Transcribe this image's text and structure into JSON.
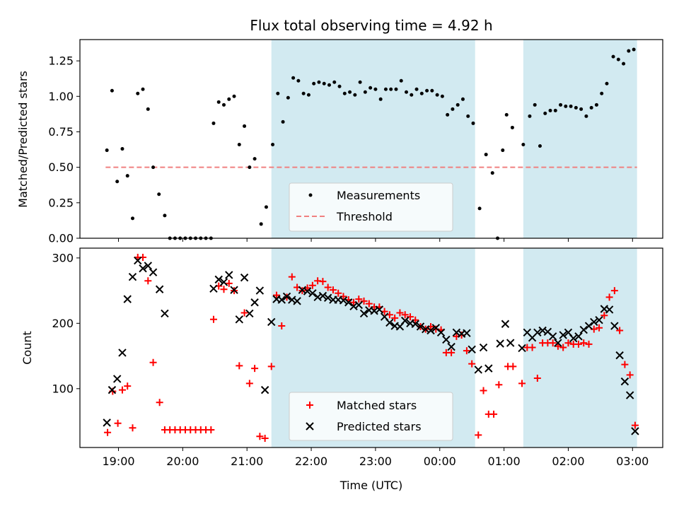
{
  "chart_data": {
    "type": "scatter",
    "title": "Flux total observing time = 4.92 h",
    "xlabel": "Time (UTC)",
    "x_ticks": [
      {
        "t": 19.0,
        "label": "19:00"
      },
      {
        "t": 20.0,
        "label": "20:00"
      },
      {
        "t": 21.0,
        "label": "21:00"
      },
      {
        "t": 22.0,
        "label": "22:00"
      },
      {
        "t": 23.0,
        "label": "23:00"
      },
      {
        "t": 24.0,
        "label": "00:00"
      },
      {
        "t": 25.0,
        "label": "01:00"
      },
      {
        "t": 26.0,
        "label": "02:00"
      },
      {
        "t": 27.0,
        "label": "03:00"
      }
    ],
    "xlim": [
      18.4,
      27.47
    ],
    "shaded_spans": [
      [
        21.38,
        24.55
      ],
      [
        25.3,
        27.07
      ]
    ],
    "colors": {
      "shade": "#add8e6",
      "matched": "#ff0000",
      "predicted": "#000000",
      "threshold": "#f08080",
      "measure": "#000000"
    },
    "top": {
      "ylabel": "Matched/Predicted stars",
      "ylim": [
        0,
        1.4
      ],
      "y_ticks": [
        0,
        0.25,
        0.5,
        0.75,
        1.0,
        1.25
      ],
      "y_tick_labels": [
        "0.00",
        "0.25",
        "0.50",
        "0.75",
        "1.00",
        "1.25"
      ],
      "threshold": 0.5,
      "threshold_x": [
        18.8,
        27.07
      ],
      "legend": [
        {
          "name": "Measurements"
        },
        {
          "name": "Threshold"
        }
      ],
      "measurements": [
        [
          18.82,
          0.62
        ],
        [
          18.9,
          1.04
        ],
        [
          18.98,
          0.4
        ],
        [
          19.06,
          0.63
        ],
        [
          19.14,
          0.44
        ],
        [
          19.22,
          0.14
        ],
        [
          19.3,
          1.02
        ],
        [
          19.38,
          1.05
        ],
        [
          19.46,
          0.91
        ],
        [
          19.54,
          0.5
        ],
        [
          19.63,
          0.31
        ],
        [
          19.72,
          0.16
        ],
        [
          19.8,
          0
        ],
        [
          19.88,
          0
        ],
        [
          19.96,
          0
        ],
        [
          20.04,
          0
        ],
        [
          20.12,
          0
        ],
        [
          20.2,
          0
        ],
        [
          20.28,
          0
        ],
        [
          20.36,
          0
        ],
        [
          20.44,
          0
        ],
        [
          20.48,
          0.81
        ],
        [
          20.56,
          0.96
        ],
        [
          20.64,
          0.94
        ],
        [
          20.72,
          0.98
        ],
        [
          20.8,
          1.0
        ],
        [
          20.88,
          0.66
        ],
        [
          20.96,
          0.79
        ],
        [
          21.04,
          0.5
        ],
        [
          21.12,
          0.56
        ],
        [
          21.22,
          0.1
        ],
        [
          21.3,
          0.22
        ],
        [
          21.4,
          0.66
        ],
        [
          21.48,
          1.02
        ],
        [
          21.56,
          0.82
        ],
        [
          21.64,
          0.99
        ],
        [
          21.72,
          1.13
        ],
        [
          21.8,
          1.11
        ],
        [
          21.88,
          1.02
        ],
        [
          21.96,
          1.01
        ],
        [
          22.04,
          1.09
        ],
        [
          22.12,
          1.1
        ],
        [
          22.2,
          1.09
        ],
        [
          22.28,
          1.08
        ],
        [
          22.36,
          1.1
        ],
        [
          22.44,
          1.07
        ],
        [
          22.52,
          1.02
        ],
        [
          22.6,
          1.03
        ],
        [
          22.68,
          1.01
        ],
        [
          22.76,
          1.1
        ],
        [
          22.84,
          1.03
        ],
        [
          22.92,
          1.06
        ],
        [
          23.0,
          1.05
        ],
        [
          23.08,
          0.98
        ],
        [
          23.16,
          1.05
        ],
        [
          23.24,
          1.05
        ],
        [
          23.32,
          1.05
        ],
        [
          23.4,
          1.11
        ],
        [
          23.48,
          1.03
        ],
        [
          23.56,
          1.01
        ],
        [
          23.64,
          1.05
        ],
        [
          23.72,
          1.02
        ],
        [
          23.8,
          1.04
        ],
        [
          23.88,
          1.04
        ],
        [
          23.96,
          1.01
        ],
        [
          24.04,
          1.0
        ],
        [
          24.12,
          0.87
        ],
        [
          24.2,
          0.91
        ],
        [
          24.28,
          0.94
        ],
        [
          24.36,
          0.98
        ],
        [
          24.44,
          0.86
        ],
        [
          24.52,
          0.81
        ],
        [
          24.62,
          0.21
        ],
        [
          24.72,
          0.59
        ],
        [
          24.82,
          0.46
        ],
        [
          24.9,
          0
        ],
        [
          24.98,
          0.62
        ],
        [
          25.04,
          0.87
        ],
        [
          25.13,
          0.78
        ],
        [
          25.3,
          0.66
        ],
        [
          25.4,
          0.86
        ],
        [
          25.48,
          0.94
        ],
        [
          25.56,
          0.65
        ],
        [
          25.64,
          0.88
        ],
        [
          25.72,
          0.9
        ],
        [
          25.8,
          0.9
        ],
        [
          25.88,
          0.94
        ],
        [
          25.96,
          0.93
        ],
        [
          26.04,
          0.93
        ],
        [
          26.12,
          0.92
        ],
        [
          26.2,
          0.91
        ],
        [
          26.28,
          0.86
        ],
        [
          26.36,
          0.92
        ],
        [
          26.44,
          0.94
        ],
        [
          26.52,
          1.02
        ],
        [
          26.6,
          1.09
        ],
        [
          26.7,
          1.28
        ],
        [
          26.78,
          1.26
        ],
        [
          26.86,
          1.23
        ],
        [
          26.94,
          1.32
        ],
        [
          27.02,
          1.33
        ]
      ]
    },
    "bottom": {
      "ylabel": "Count",
      "ylim": [
        10,
        315
      ],
      "y_ticks": [
        100,
        200,
        300
      ],
      "y_tick_labels": [
        "100",
        "200",
        "300"
      ],
      "legend": [
        {
          "name": "Matched stars"
        },
        {
          "name": "Predicted stars"
        }
      ],
      "matched": [
        [
          18.83,
          33
        ],
        [
          18.91,
          96
        ],
        [
          18.99,
          47
        ],
        [
          19.06,
          98
        ],
        [
          19.14,
          104
        ],
        [
          19.22,
          40
        ],
        [
          19.3,
          301
        ],
        [
          19.38,
          301
        ],
        [
          19.46,
          265
        ],
        [
          19.54,
          140
        ],
        [
          19.64,
          79
        ],
        [
          19.72,
          37
        ],
        [
          19.8,
          37
        ],
        [
          19.88,
          37
        ],
        [
          19.96,
          37
        ],
        [
          20.04,
          37
        ],
        [
          20.12,
          37
        ],
        [
          20.2,
          37
        ],
        [
          20.28,
          37
        ],
        [
          20.36,
          37
        ],
        [
          20.44,
          37
        ],
        [
          20.48,
          206
        ],
        [
          20.56,
          257
        ],
        [
          20.64,
          252
        ],
        [
          20.72,
          261
        ],
        [
          20.8,
          250
        ],
        [
          20.88,
          135
        ],
        [
          20.96,
          216
        ],
        [
          21.04,
          108
        ],
        [
          21.12,
          131
        ],
        [
          21.2,
          27
        ],
        [
          21.28,
          24
        ],
        [
          21.38,
          134
        ],
        [
          21.46,
          243
        ],
        [
          21.54,
          196
        ],
        [
          21.62,
          240
        ],
        [
          21.7,
          271
        ],
        [
          21.78,
          255
        ],
        [
          21.86,
          250
        ],
        [
          21.94,
          254
        ],
        [
          22.02,
          258
        ],
        [
          22.1,
          265
        ],
        [
          22.18,
          264
        ],
        [
          22.26,
          255
        ],
        [
          22.34,
          251
        ],
        [
          22.42,
          246
        ],
        [
          22.5,
          241
        ],
        [
          22.58,
          236
        ],
        [
          22.66,
          232
        ],
        [
          22.74,
          237
        ],
        [
          22.82,
          234
        ],
        [
          22.9,
          230
        ],
        [
          22.98,
          225
        ],
        [
          23.06,
          225
        ],
        [
          23.14,
          218
        ],
        [
          23.22,
          213
        ],
        [
          23.3,
          208
        ],
        [
          23.38,
          216
        ],
        [
          23.46,
          213
        ],
        [
          23.54,
          210
        ],
        [
          23.62,
          205
        ],
        [
          23.7,
          195
        ],
        [
          23.78,
          191
        ],
        [
          23.86,
          195
        ],
        [
          23.94,
          191
        ],
        [
          24.02,
          190
        ],
        [
          24.1,
          155
        ],
        [
          24.18,
          155
        ],
        [
          24.26,
          180
        ],
        [
          24.34,
          182
        ],
        [
          24.42,
          158
        ],
        [
          24.5,
          138
        ],
        [
          24.6,
          29
        ],
        [
          24.68,
          97
        ],
        [
          24.76,
          61
        ],
        [
          24.84,
          61
        ],
        [
          24.92,
          106
        ],
        [
          25.06,
          134
        ],
        [
          25.14,
          134
        ],
        [
          25.28,
          108
        ],
        [
          25.36,
          163
        ],
        [
          25.44,
          163
        ],
        [
          25.52,
          116
        ],
        [
          25.6,
          170
        ],
        [
          25.68,
          170
        ],
        [
          25.76,
          170
        ],
        [
          25.84,
          165
        ],
        [
          25.92,
          163
        ],
        [
          26.0,
          170
        ],
        [
          26.08,
          168
        ],
        [
          26.16,
          168
        ],
        [
          26.24,
          170
        ],
        [
          26.32,
          168
        ],
        [
          26.4,
          191
        ],
        [
          26.48,
          193
        ],
        [
          26.56,
          212
        ],
        [
          26.64,
          240
        ],
        [
          26.72,
          250
        ],
        [
          26.8,
          189
        ],
        [
          26.88,
          137
        ],
        [
          26.96,
          121
        ],
        [
          27.04,
          44
        ]
      ],
      "predicted": [
        [
          18.82,
          48
        ],
        [
          18.9,
          98
        ],
        [
          18.98,
          115
        ],
        [
          19.06,
          155
        ],
        [
          19.14,
          237
        ],
        [
          19.22,
          271
        ],
        [
          19.3,
          296
        ],
        [
          19.38,
          284
        ],
        [
          19.46,
          288
        ],
        [
          19.54,
          278
        ],
        [
          19.64,
          252
        ],
        [
          19.72,
          215
        ],
        [
          20.48,
          253
        ],
        [
          20.56,
          267
        ],
        [
          20.64,
          263
        ],
        [
          20.72,
          274
        ],
        [
          20.8,
          251
        ],
        [
          20.88,
          206
        ],
        [
          20.96,
          270
        ],
        [
          21.04,
          215
        ],
        [
          21.12,
          232
        ],
        [
          21.2,
          250
        ],
        [
          21.28,
          98
        ],
        [
          21.38,
          202
        ],
        [
          21.46,
          237
        ],
        [
          21.54,
          236
        ],
        [
          21.62,
          241
        ],
        [
          21.7,
          236
        ],
        [
          21.78,
          234
        ],
        [
          21.86,
          251
        ],
        [
          21.94,
          249
        ],
        [
          22.02,
          246
        ],
        [
          22.1,
          240
        ],
        [
          22.18,
          242
        ],
        [
          22.26,
          239
        ],
        [
          22.34,
          236
        ],
        [
          22.42,
          236
        ],
        [
          22.5,
          235
        ],
        [
          22.58,
          232
        ],
        [
          22.66,
          226
        ],
        [
          22.74,
          228
        ],
        [
          22.82,
          215
        ],
        [
          22.9,
          220
        ],
        [
          22.98,
          219
        ],
        [
          23.06,
          221
        ],
        [
          23.14,
          210
        ],
        [
          23.22,
          201
        ],
        [
          23.3,
          196
        ],
        [
          23.38,
          195
        ],
        [
          23.46,
          204
        ],
        [
          23.54,
          200
        ],
        [
          23.62,
          199
        ],
        [
          23.7,
          195
        ],
        [
          23.78,
          191
        ],
        [
          23.86,
          189
        ],
        [
          23.94,
          193
        ],
        [
          24.02,
          186
        ],
        [
          24.1,
          175
        ],
        [
          24.18,
          164
        ],
        [
          24.26,
          186
        ],
        [
          24.34,
          184
        ],
        [
          24.42,
          185
        ],
        [
          24.5,
          160
        ],
        [
          24.6,
          129
        ],
        [
          24.68,
          163
        ],
        [
          24.76,
          131
        ],
        [
          24.94,
          169
        ],
        [
          25.02,
          199
        ],
        [
          25.1,
          170
        ],
        [
          25.28,
          162
        ],
        [
          25.36,
          186
        ],
        [
          25.44,
          178
        ],
        [
          25.52,
          186
        ],
        [
          25.6,
          189
        ],
        [
          25.68,
          187
        ],
        [
          25.76,
          180
        ],
        [
          25.84,
          170
        ],
        [
          25.92,
          182
        ],
        [
          26.0,
          186
        ],
        [
          26.08,
          177
        ],
        [
          26.16,
          180
        ],
        [
          26.24,
          190
        ],
        [
          26.32,
          196
        ],
        [
          26.4,
          202
        ],
        [
          26.48,
          205
        ],
        [
          26.56,
          222
        ],
        [
          26.64,
          221
        ],
        [
          26.72,
          196
        ],
        [
          26.8,
          151
        ],
        [
          26.88,
          111
        ],
        [
          26.96,
          90
        ],
        [
          27.04,
          35
        ]
      ]
    }
  }
}
